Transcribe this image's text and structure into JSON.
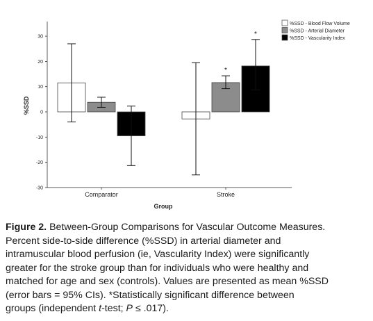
{
  "chart_data": {
    "type": "bar",
    "xlabel": "Group",
    "ylabel": "%SSD",
    "ylim": [
      -30,
      35
    ],
    "yticks": [
      -30,
      -20,
      -10,
      0,
      10,
      20,
      30
    ],
    "grid": false,
    "legend_position": "top-right",
    "categories": [
      "Comparator",
      "Stroke"
    ],
    "series": [
      {
        "name": "%SSD - Blood Flow Volume",
        "color": "#ffffff",
        "values": [
          11.5,
          -2.8
        ],
        "ci_low": [
          -4.0,
          -25.0
        ],
        "ci_high": [
          27.0,
          19.5
        ],
        "significance": [
          "",
          ""
        ]
      },
      {
        "name": "%SSD - Arterial Diameter",
        "color": "#8c8c8c",
        "values": [
          3.8,
          11.6
        ],
        "ci_low": [
          1.8,
          9.2
        ],
        "ci_high": [
          5.8,
          14.3
        ],
        "significance": [
          "",
          "*"
        ]
      },
      {
        "name": "%SSD - Vascularity Index",
        "color": "#000000",
        "values": [
          -9.5,
          18.2
        ],
        "ci_low": [
          -21.3,
          8.7
        ],
        "ci_high": [
          2.3,
          28.7
        ],
        "significance": [
          "",
          "*"
        ]
      }
    ]
  },
  "caption": {
    "figure_label": "Figure 2.",
    "line1_rest": " Between-Group Comparisons for Vascular Outcome Measures.",
    "line2": "Percent side-to-side difference (%SSD) in arterial diameter and",
    "line3": "intramuscular blood perfusion (ie, Vascularity Index) were significantly",
    "line4": "greater for the stroke group than for individuals who were healthy and",
    "line5": "matched for age and sex (controls). Values are presented as mean %SSD",
    "line6": "(error bars = 95% CIs). *Statistically significant difference between",
    "line7_pre": "groups (independent ",
    "line7_t": "t",
    "line7_mid": "-test; ",
    "line7_p": "P",
    "line7_post": " ≤ .017)."
  }
}
